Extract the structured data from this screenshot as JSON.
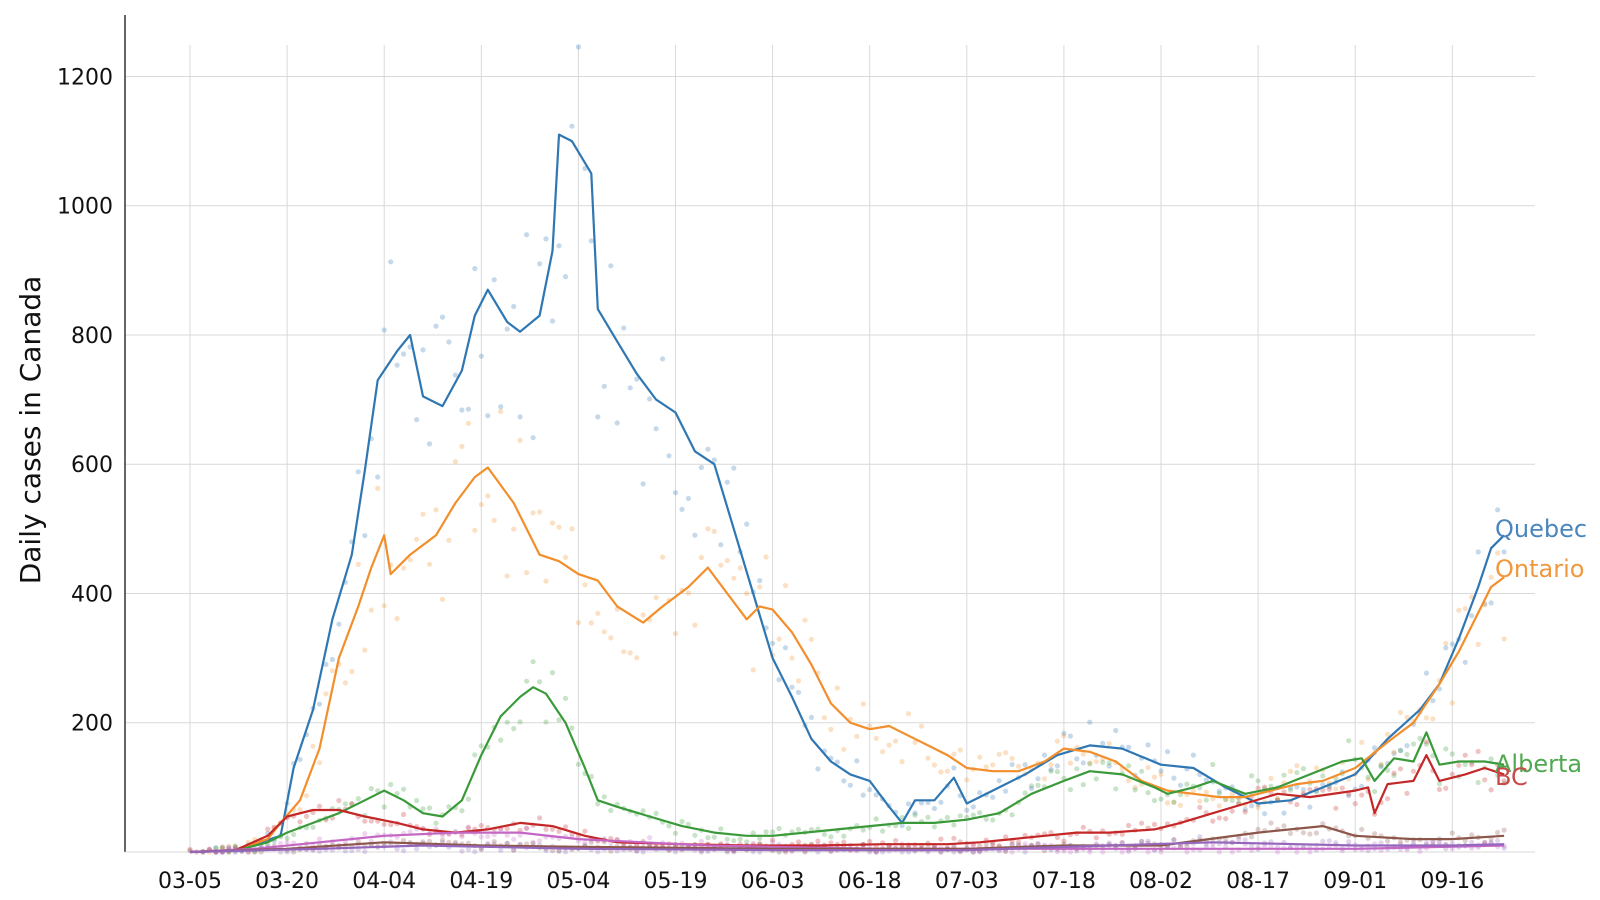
{
  "chart_data": {
    "type": "line",
    "title": "",
    "xlabel": "",
    "ylabel": "Daily cases in Canada",
    "ylim": [
      0,
      1300
    ],
    "yticks": [
      200,
      400,
      600,
      800,
      1000,
      1200
    ],
    "xtick_labels": [
      "03-05",
      "03-20",
      "04-04",
      "04-19",
      "05-04",
      "05-19",
      "06-03",
      "06-18",
      "07-03",
      "07-18",
      "08-02",
      "08-17",
      "09-01",
      "09-16"
    ],
    "grid": true,
    "x_start": "03-05",
    "x_end": "09-24",
    "series": [
      {
        "name": "Quebec",
        "color": "#2f77b2",
        "points": [
          [
            "03-05",
            0
          ],
          [
            "03-12",
            2
          ],
          [
            "03-19",
            25
          ],
          [
            "03-21",
            130
          ],
          [
            "03-24",
            220
          ],
          [
            "03-27",
            360
          ],
          [
            "03-30",
            460
          ],
          [
            "04-01",
            590
          ],
          [
            "04-03",
            730
          ],
          [
            "04-06",
            775
          ],
          [
            "04-08",
            800
          ],
          [
            "04-10",
            705
          ],
          [
            "04-13",
            690
          ],
          [
            "04-16",
            745
          ],
          [
            "04-18",
            830
          ],
          [
            "04-20",
            870
          ],
          [
            "04-23",
            820
          ],
          [
            "04-25",
            805
          ],
          [
            "04-28",
            830
          ],
          [
            "04-30",
            930
          ],
          [
            "05-01",
            1110
          ],
          [
            "05-03",
            1100
          ],
          [
            "05-06",
            1050
          ],
          [
            "05-07",
            840
          ],
          [
            "05-10",
            790
          ],
          [
            "05-13",
            740
          ],
          [
            "05-16",
            700
          ],
          [
            "05-19",
            680
          ],
          [
            "05-22",
            620
          ],
          [
            "05-25",
            600
          ],
          [
            "05-28",
            500
          ],
          [
            "05-31",
            400
          ],
          [
            "06-03",
            300
          ],
          [
            "06-06",
            240
          ],
          [
            "06-09",
            175
          ],
          [
            "06-12",
            140
          ],
          [
            "06-15",
            120
          ],
          [
            "06-18",
            110
          ],
          [
            "06-21",
            70
          ],
          [
            "06-23",
            45
          ],
          [
            "06-25",
            80
          ],
          [
            "06-28",
            80
          ],
          [
            "07-01",
            115
          ],
          [
            "07-03",
            75
          ],
          [
            "07-07",
            95
          ],
          [
            "07-12",
            120
          ],
          [
            "07-17",
            150
          ],
          [
            "07-22",
            165
          ],
          [
            "07-27",
            160
          ],
          [
            "08-02",
            135
          ],
          [
            "08-07",
            130
          ],
          [
            "08-12",
            100
          ],
          [
            "08-17",
            75
          ],
          [
            "08-22",
            80
          ],
          [
            "08-27",
            100
          ],
          [
            "09-01",
            120
          ],
          [
            "09-06",
            175
          ],
          [
            "09-11",
            220
          ],
          [
            "09-14",
            260
          ],
          [
            "09-17",
            330
          ],
          [
            "09-20",
            410
          ],
          [
            "09-22",
            470
          ],
          [
            "09-24",
            490
          ]
        ]
      },
      {
        "name": "Ontario",
        "color": "#f28e2b",
        "points": [
          [
            "03-05",
            0
          ],
          [
            "03-12",
            3
          ],
          [
            "03-17",
            20
          ],
          [
            "03-19",
            45
          ],
          [
            "03-22",
            80
          ],
          [
            "03-25",
            160
          ],
          [
            "03-28",
            300
          ],
          [
            "03-31",
            380
          ],
          [
            "04-02",
            440
          ],
          [
            "04-04",
            490
          ],
          [
            "04-05",
            430
          ],
          [
            "04-08",
            460
          ],
          [
            "04-12",
            490
          ],
          [
            "04-15",
            540
          ],
          [
            "04-18",
            580
          ],
          [
            "04-20",
            595
          ],
          [
            "04-24",
            540
          ],
          [
            "04-28",
            460
          ],
          [
            "05-01",
            450
          ],
          [
            "05-04",
            430
          ],
          [
            "05-07",
            420
          ],
          [
            "05-10",
            380
          ],
          [
            "05-14",
            355
          ],
          [
            "05-17",
            380
          ],
          [
            "05-21",
            410
          ],
          [
            "05-24",
            440
          ],
          [
            "05-27",
            400
          ],
          [
            "05-30",
            360
          ],
          [
            "06-01",
            380
          ],
          [
            "06-03",
            375
          ],
          [
            "06-06",
            340
          ],
          [
            "06-09",
            290
          ],
          [
            "06-12",
            230
          ],
          [
            "06-15",
            200
          ],
          [
            "06-18",
            190
          ],
          [
            "06-21",
            195
          ],
          [
            "06-24",
            180
          ],
          [
            "06-27",
            165
          ],
          [
            "06-30",
            150
          ],
          [
            "07-03",
            130
          ],
          [
            "07-07",
            125
          ],
          [
            "07-11",
            125
          ],
          [
            "07-15",
            140
          ],
          [
            "07-18",
            160
          ],
          [
            "07-22",
            155
          ],
          [
            "07-26",
            140
          ],
          [
            "07-30",
            110
          ],
          [
            "08-03",
            95
          ],
          [
            "08-07",
            90
          ],
          [
            "08-11",
            85
          ],
          [
            "08-15",
            85
          ],
          [
            "08-19",
            95
          ],
          [
            "08-23",
            105
          ],
          [
            "08-27",
            110
          ],
          [
            "09-01",
            130
          ],
          [
            "09-06",
            170
          ],
          [
            "09-10",
            200
          ],
          [
            "09-14",
            260
          ],
          [
            "09-17",
            310
          ],
          [
            "09-20",
            370
          ],
          [
            "09-22",
            410
          ],
          [
            "09-24",
            425
          ]
        ]
      },
      {
        "name": "Alberta",
        "color": "#3a9a3a",
        "points": [
          [
            "03-05",
            0
          ],
          [
            "03-12",
            2
          ],
          [
            "03-17",
            15
          ],
          [
            "03-20",
            30
          ],
          [
            "03-24",
            45
          ],
          [
            "03-28",
            60
          ],
          [
            "04-01",
            80
          ],
          [
            "04-04",
            95
          ],
          [
            "04-07",
            80
          ],
          [
            "04-10",
            60
          ],
          [
            "04-13",
            55
          ],
          [
            "04-16",
            80
          ],
          [
            "04-19",
            150
          ],
          [
            "04-22",
            210
          ],
          [
            "04-25",
            240
          ],
          [
            "04-27",
            255
          ],
          [
            "04-29",
            245
          ],
          [
            "05-02",
            200
          ],
          [
            "05-05",
            130
          ],
          [
            "05-07",
            80
          ],
          [
            "05-10",
            70
          ],
          [
            "05-15",
            55
          ],
          [
            "05-20",
            40
          ],
          [
            "05-25",
            30
          ],
          [
            "05-30",
            25
          ],
          [
            "06-03",
            25
          ],
          [
            "06-08",
            30
          ],
          [
            "06-13",
            35
          ],
          [
            "06-18",
            40
          ],
          [
            "06-23",
            45
          ],
          [
            "06-28",
            45
          ],
          [
            "07-03",
            50
          ],
          [
            "07-08",
            60
          ],
          [
            "07-13",
            90
          ],
          [
            "07-18",
            110
          ],
          [
            "07-22",
            125
          ],
          [
            "07-27",
            120
          ],
          [
            "08-01",
            100
          ],
          [
            "08-03",
            90
          ],
          [
            "08-07",
            100
          ],
          [
            "08-10",
            110
          ],
          [
            "08-15",
            90
          ],
          [
            "08-20",
            100
          ],
          [
            "08-25",
            120
          ],
          [
            "08-30",
            140
          ],
          [
            "09-02",
            145
          ],
          [
            "09-04",
            110
          ],
          [
            "09-07",
            145
          ],
          [
            "09-10",
            140
          ],
          [
            "09-12",
            185
          ],
          [
            "09-14",
            135
          ],
          [
            "09-17",
            140
          ],
          [
            "09-21",
            140
          ],
          [
            "09-24",
            135
          ]
        ]
      },
      {
        "name": "BC",
        "color": "#c42727",
        "points": [
          [
            "03-05",
            0
          ],
          [
            "03-12",
            3
          ],
          [
            "03-17",
            25
          ],
          [
            "03-20",
            55
          ],
          [
            "03-24",
            65
          ],
          [
            "03-28",
            65
          ],
          [
            "04-01",
            55
          ],
          [
            "04-06",
            45
          ],
          [
            "04-10",
            35
          ],
          [
            "04-15",
            30
          ],
          [
            "04-20",
            35
          ],
          [
            "04-25",
            45
          ],
          [
            "04-30",
            40
          ],
          [
            "05-05",
            25
          ],
          [
            "05-10",
            15
          ],
          [
            "05-20",
            12
          ],
          [
            "05-30",
            10
          ],
          [
            "06-10",
            10
          ],
          [
            "06-20",
            12
          ],
          [
            "06-30",
            12
          ],
          [
            "07-05",
            15
          ],
          [
            "07-10",
            20
          ],
          [
            "07-15",
            25
          ],
          [
            "07-20",
            30
          ],
          [
            "07-25",
            30
          ],
          [
            "08-01",
            35
          ],
          [
            "08-05",
            45
          ],
          [
            "08-10",
            60
          ],
          [
            "08-15",
            75
          ],
          [
            "08-20",
            90
          ],
          [
            "08-25",
            85
          ],
          [
            "09-01",
            95
          ],
          [
            "09-03",
            100
          ],
          [
            "09-04",
            60
          ],
          [
            "09-06",
            105
          ],
          [
            "09-10",
            110
          ],
          [
            "09-12",
            150
          ],
          [
            "09-14",
            110
          ],
          [
            "09-18",
            120
          ],
          [
            "09-21",
            130
          ],
          [
            "09-24",
            120
          ]
        ]
      },
      {
        "name": "",
        "color": "#c467c4",
        "points": [
          [
            "03-05",
            0
          ],
          [
            "03-15",
            5
          ],
          [
            "03-25",
            15
          ],
          [
            "04-04",
            25
          ],
          [
            "04-15",
            30
          ],
          [
            "04-25",
            30
          ],
          [
            "05-04",
            20
          ],
          [
            "05-14",
            15
          ],
          [
            "05-24",
            10
          ],
          [
            "06-03",
            8
          ],
          [
            "06-20",
            5
          ],
          [
            "07-10",
            5
          ],
          [
            "08-01",
            5
          ],
          [
            "09-01",
            5
          ],
          [
            "09-24",
            10
          ]
        ]
      },
      {
        "name": "",
        "color": "#8c564b",
        "points": [
          [
            "03-05",
            0
          ],
          [
            "03-20",
            5
          ],
          [
            "04-04",
            15
          ],
          [
            "04-19",
            10
          ],
          [
            "05-04",
            8
          ],
          [
            "06-03",
            5
          ],
          [
            "07-03",
            5
          ],
          [
            "07-18",
            10
          ],
          [
            "08-02",
            10
          ],
          [
            "08-17",
            30
          ],
          [
            "08-27",
            40
          ],
          [
            "09-01",
            25
          ],
          [
            "09-10",
            20
          ],
          [
            "09-16",
            20
          ],
          [
            "09-24",
            25
          ]
        ]
      },
      {
        "name": "",
        "color": "#9467bd",
        "points": [
          [
            "03-05",
            0
          ],
          [
            "03-25",
            5
          ],
          [
            "04-10",
            10
          ],
          [
            "05-04",
            5
          ],
          [
            "06-03",
            3
          ],
          [
            "07-03",
            3
          ],
          [
            "07-25",
            10
          ],
          [
            "08-10",
            15
          ],
          [
            "09-01",
            10
          ],
          [
            "09-16",
            10
          ],
          [
            "09-24",
            12
          ]
        ]
      }
    ]
  },
  "labels": {
    "quebec": "Quebec",
    "ontario": "Ontario",
    "alberta": "Alberta",
    "bc": "BC"
  }
}
